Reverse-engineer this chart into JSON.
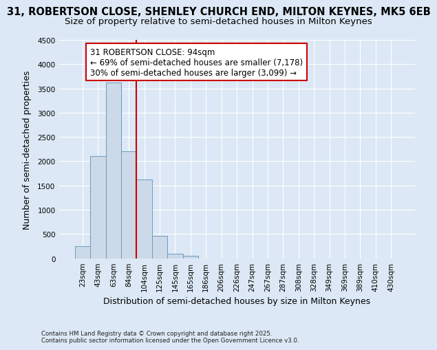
{
  "title_line1": "31, ROBERTSON CLOSE, SHENLEY CHURCH END, MILTON KEYNES, MK5 6EB",
  "title_line2": "Size of property relative to semi-detached houses in Milton Keynes",
  "xlabel": "Distribution of semi-detached houses by size in Milton Keynes",
  "ylabel": "Number of semi-detached properties",
  "footnote": "Contains HM Land Registry data © Crown copyright and database right 2025.\nContains public sector information licensed under the Open Government Licence v3.0.",
  "categories": [
    "23sqm",
    "43sqm",
    "63sqm",
    "84sqm",
    "104sqm",
    "125sqm",
    "145sqm",
    "165sqm",
    "186sqm",
    "206sqm",
    "226sqm",
    "247sqm",
    "267sqm",
    "287sqm",
    "308sqm",
    "328sqm",
    "349sqm",
    "369sqm",
    "389sqm",
    "410sqm",
    "430sqm"
  ],
  "values": [
    250,
    2100,
    3620,
    2200,
    1620,
    460,
    100,
    55,
    0,
    0,
    0,
    0,
    0,
    0,
    0,
    0,
    0,
    0,
    0,
    0,
    0
  ],
  "bar_color": "#ccd9e8",
  "bar_edge_color": "#6a9abf",
  "background_color": "#dce8f5",
  "grid_color": "#ffffff",
  "vline_x": 3.5,
  "vline_color": "#cc0000",
  "ylim": [
    0,
    4500
  ],
  "yticks": [
    0,
    500,
    1000,
    1500,
    2000,
    2500,
    3000,
    3500,
    4000,
    4500
  ],
  "annotation_title": "31 ROBERTSON CLOSE: 94sqm",
  "annotation_line1": "← 69% of semi-detached houses are smaller (7,178)",
  "annotation_line2": "30% of semi-detached houses are larger (3,099) →",
  "annotation_box_color": "white",
  "annotation_box_edge": "#cc0000",
  "title_fontsize": 10.5,
  "subtitle_fontsize": 9.5,
  "label_fontsize": 9,
  "tick_fontsize": 7.5,
  "annotation_fontsize": 8.5
}
